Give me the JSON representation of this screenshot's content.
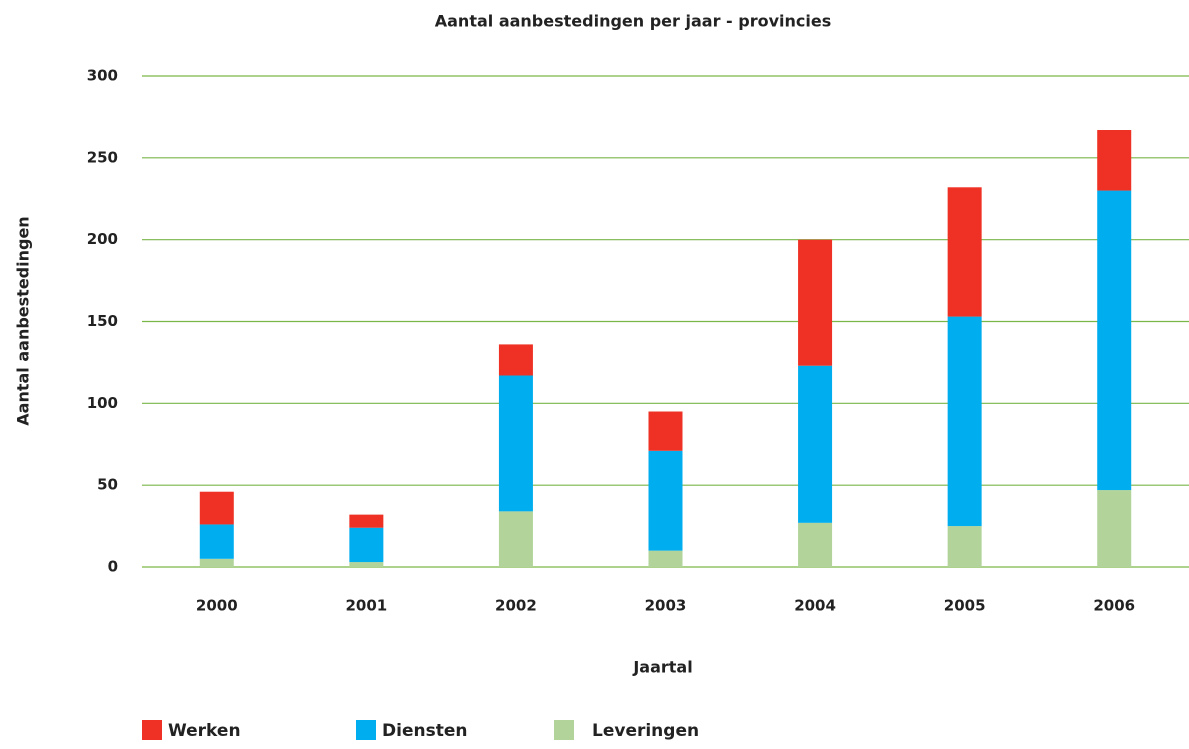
{
  "chart_data": {
    "type": "stacked_bar",
    "title": "Aantal aanbestedingen per jaar - provincies",
    "x_label": "Jaartal",
    "y_label": "Aantal aanbestedingen",
    "categories": [
      "2000",
      "2001",
      "2002",
      "2003",
      "2004",
      "2005",
      "2006"
    ],
    "series": [
      {
        "name": "Werken",
        "color": "#ee3124",
        "values": [
          20,
          8,
          19,
          24,
          77,
          79,
          37
        ]
      },
      {
        "name": "Diensten",
        "color": "#00aeef",
        "values": [
          21,
          21,
          83,
          61,
          96,
          128,
          183
        ]
      },
      {
        "name": "Leveringen",
        "color": "#b2d49a",
        "values": [
          5,
          3,
          34,
          10,
          27,
          25,
          47
        ]
      }
    ],
    "ylim": [
      0,
      300
    ],
    "yticks": [
      0,
      50,
      100,
      150,
      200,
      250,
      300
    ],
    "grid": true,
    "grid_color": "#7ab648",
    "legend": "bottom"
  }
}
